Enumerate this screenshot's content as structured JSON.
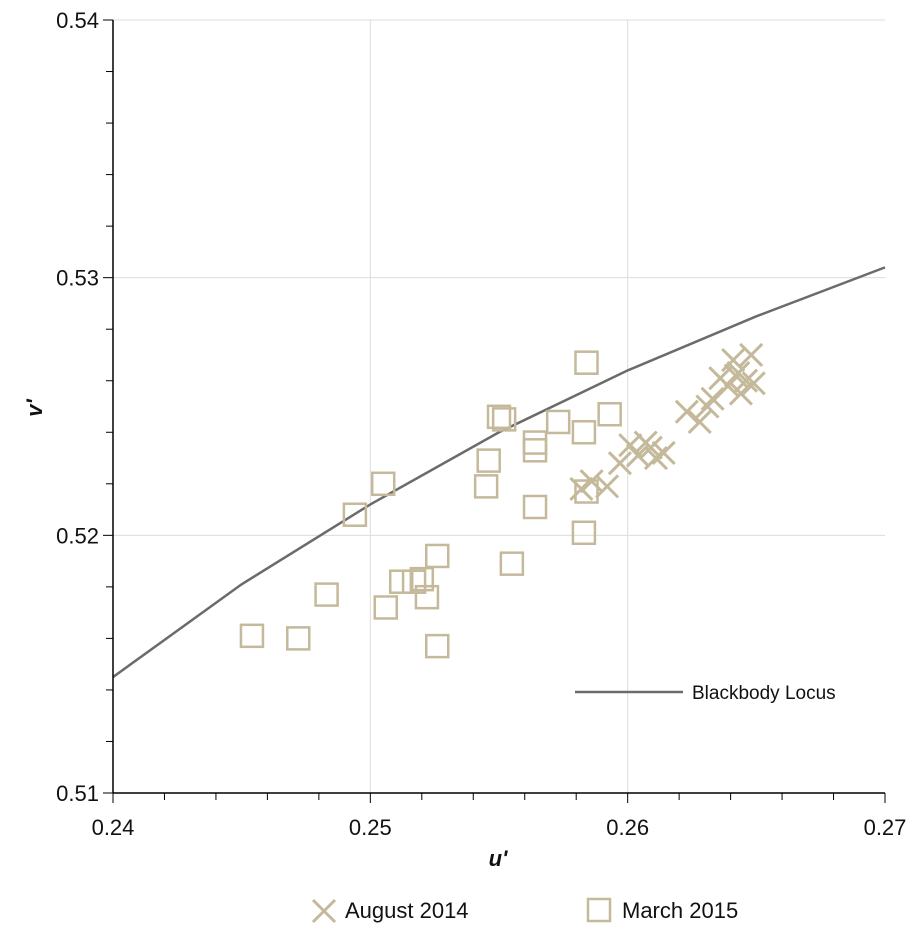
{
  "colors": {
    "marker": "#c4b99a",
    "locus": "#6b6b6b",
    "grid": "#dcdcdc",
    "axis": "#000000"
  },
  "chart_data": {
    "type": "scatter",
    "title": "",
    "xlabel": "u'",
    "ylabel": "v'",
    "xlim": [
      0.24,
      0.27
    ],
    "ylim": [
      0.51,
      0.54
    ],
    "xticks": [
      "0.24",
      "0.25",
      "0.26",
      "0.27"
    ],
    "yticks": [
      "0.51",
      "0.52",
      "0.53",
      "0.54"
    ],
    "grid": true,
    "legend_placement": "bottom",
    "series": [
      {
        "name": "August 2014",
        "marker": "x",
        "x": [
          0.2582,
          0.2586,
          0.2592,
          0.2597,
          0.2601,
          0.2604,
          0.2607,
          0.2609,
          0.2611,
          0.2614,
          0.2623,
          0.2628,
          0.2631,
          0.2633,
          0.2636,
          0.2639,
          0.2641,
          0.2642,
          0.2643,
          0.2644,
          0.2646,
          0.2648,
          0.2649
        ],
        "y": [
          0.5218,
          0.5221,
          0.5219,
          0.5228,
          0.5235,
          0.5231,
          0.5236,
          0.5234,
          0.523,
          0.5232,
          0.5248,
          0.5244,
          0.525,
          0.5253,
          0.5261,
          0.5258,
          0.5268,
          0.5262,
          0.5263,
          0.5255,
          0.526,
          0.527,
          0.5259
        ]
      },
      {
        "name": "March 2015",
        "marker": "square",
        "x": [
          0.2454,
          0.2472,
          0.2483,
          0.2494,
          0.2505,
          0.2506,
          0.2512,
          0.2517,
          0.252,
          0.2522,
          0.2526,
          0.2526,
          0.2545,
          0.2546,
          0.255,
          0.2552,
          0.2555,
          0.2564,
          0.2564,
          0.2564,
          0.2573,
          0.2583,
          0.2583,
          0.2584,
          0.2584,
          0.2593
        ],
        "y": [
          0.5161,
          0.516,
          0.5177,
          0.5208,
          0.522,
          0.5172,
          0.5182,
          0.5182,
          0.5183,
          0.5176,
          0.5192,
          0.5157,
          0.5219,
          0.5229,
          0.5246,
          0.5245,
          0.5189,
          0.5233,
          0.5211,
          0.5236,
          0.5244,
          0.524,
          0.5201,
          0.5217,
          0.5267,
          0.5247
        ]
      }
    ],
    "locus": {
      "name": "Blackbody Locus",
      "x": [
        0.24,
        0.245,
        0.25,
        0.255,
        0.26,
        0.265,
        0.27
      ],
      "y": [
        0.5145,
        0.5181,
        0.5212,
        0.524,
        0.5264,
        0.5285,
        0.5304
      ]
    }
  }
}
